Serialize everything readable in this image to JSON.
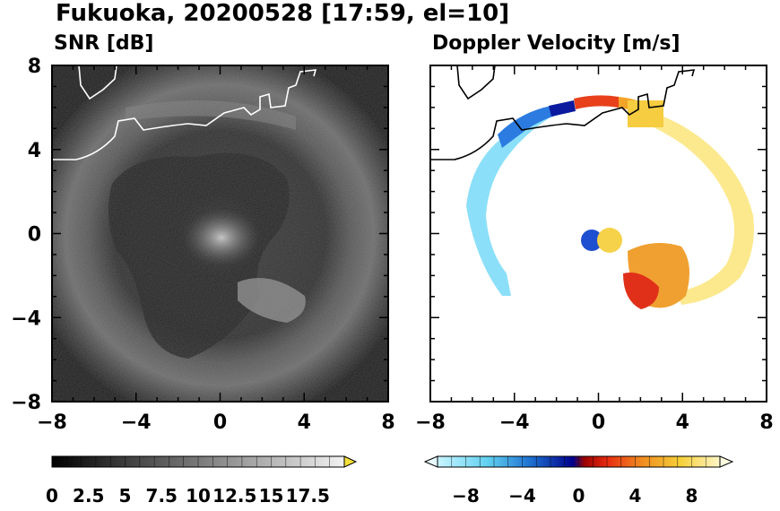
{
  "title": "Fukuoka, 20200528 [17:59, el=10]",
  "panels": [
    {
      "id": "snr",
      "subtitle": "SNR [dB]"
    },
    {
      "id": "doppler",
      "subtitle": "Doppler Velocity [m/s]"
    }
  ],
  "chart_data": [
    {
      "type": "heatmap",
      "name": "snr",
      "title": "SNR [dB]",
      "xlim": [
        -8,
        8
      ],
      "ylim": [
        -8,
        8
      ],
      "x_ticks": [
        -8,
        -4,
        0,
        4,
        8
      ],
      "y_ticks": [
        8,
        4,
        0,
        -4,
        -8
      ],
      "colorbar": {
        "range": [
          0,
          20
        ],
        "ticks": [
          "0",
          "2.5",
          "5",
          "7.5",
          "10",
          "12.5",
          "15",
          "17.5"
        ],
        "extend": "max",
        "extend_color": "#f5e03a",
        "colormap": "grayscale"
      },
      "grid": false
    },
    {
      "type": "heatmap",
      "name": "doppler",
      "title": "Doppler Velocity [m/s]",
      "xlim": [
        -8,
        8
      ],
      "ylim": [
        -8,
        8
      ],
      "x_ticks": [
        -8,
        -4,
        0,
        4,
        8
      ],
      "colorbar": {
        "range": [
          -10,
          10
        ],
        "ticks": [
          "−8",
          "−4",
          "0",
          "4",
          "8"
        ],
        "extend": "both",
        "colormap": "diverging blue-red-yellow"
      },
      "grid": false
    }
  ]
}
